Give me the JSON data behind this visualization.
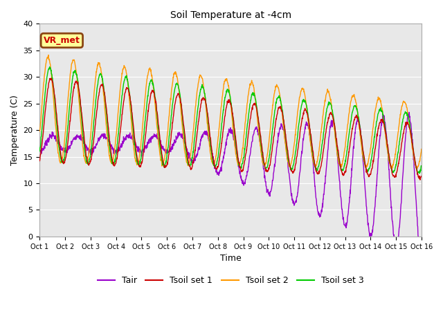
{
  "title": "Soil Temperature at -4cm",
  "xlabel": "Time",
  "ylabel": "Temperature (C)",
  "ylim": [
    0,
    40
  ],
  "xlim": [
    0,
    15
  ],
  "xtick_labels": [
    "Oct 1",
    "Oct 2",
    "Oct 3",
    "Oct 4",
    "Oct 5",
    "Oct 6",
    "Oct 7",
    "Oct 8",
    "Oct 9",
    "Oct 10",
    "Oct 11",
    "Oct 12",
    "Oct 13",
    "Oct 14",
    "Oct 15",
    "Oct 16"
  ],
  "ytick_labels": [
    "0",
    "5",
    "10",
    "15",
    "20",
    "25",
    "30",
    "35",
    "40"
  ],
  "ytick_values": [
    0,
    5,
    10,
    15,
    20,
    25,
    30,
    35,
    40
  ],
  "line_colors": {
    "Tair": "#9900cc",
    "Tsoil1": "#cc0000",
    "Tsoil2": "#ff9900",
    "Tsoil3": "#00cc00"
  },
  "annotation_text": "VR_met",
  "annotation_bg": "#ffff99",
  "annotation_border": "#8B4513",
  "annotation_text_color": "#cc0000",
  "bg_color": "#e8e8e8",
  "legend_labels": [
    "Tair",
    "Tsoil set 1",
    "Tsoil set 2",
    "Tsoil set 3"
  ],
  "n_points": 1440,
  "days": 15
}
